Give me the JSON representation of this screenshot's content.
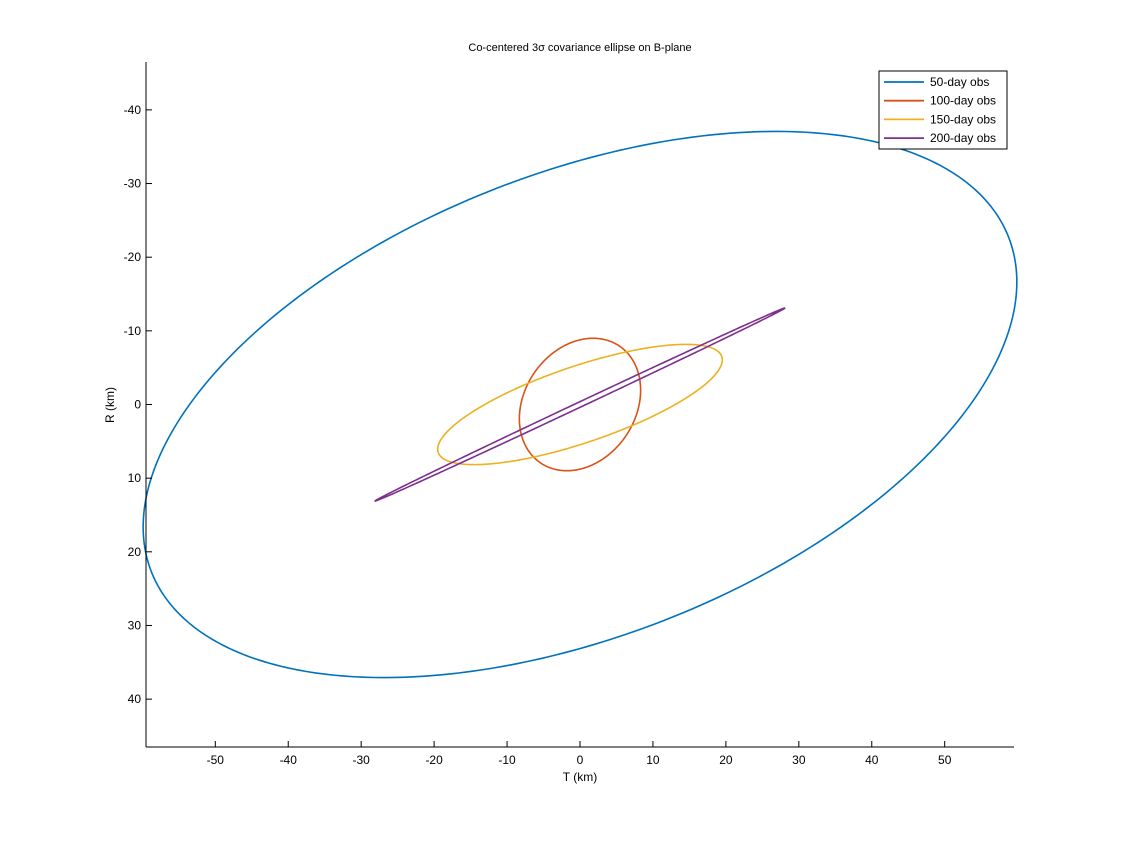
{
  "chart_data": {
    "type": "line",
    "title": "Co-centered 3σ covariance ellipse on B-plane",
    "xlabel": "T (km)",
    "ylabel": "R (km)",
    "xlim": [
      -59.5,
      59.5
    ],
    "ylim": [
      -46.5,
      46.5
    ],
    "y_reversed": true,
    "x_ticks": [
      -50,
      -40,
      -30,
      -20,
      -10,
      0,
      10,
      20,
      30,
      40,
      50
    ],
    "x_tick_labels": [
      "-50",
      "-40",
      "-30",
      "-20",
      "-10",
      "0",
      "10",
      "20",
      "30",
      "40",
      "50"
    ],
    "y_ticks": [
      -40,
      -30,
      -20,
      -10,
      0,
      10,
      20,
      30,
      40
    ],
    "y_tick_labels": [
      "-40",
      "-30",
      "-20",
      "-10",
      "0",
      "10",
      "20",
      "30",
      "40"
    ],
    "grid": false,
    "legend_position": "top-right",
    "series": [
      {
        "name": "50-day obs",
        "color": "#0072BD",
        "center": [
          0,
          0
        ],
        "semi_major": 63.0,
        "semi_minor": 31.5,
        "tilt_deg": -21.0
      },
      {
        "name": "100-day obs",
        "color": "#D95319",
        "center": [
          0,
          0
        ],
        "semi_major": 9.6,
        "semi_minor": 7.6,
        "tilt_deg": -55.0
      },
      {
        "name": "150-day obs",
        "color": "#EDB120",
        "center": [
          0,
          0
        ],
        "semi_major": 20.5,
        "semi_minor": 5.2,
        "tilt_deg": -18.5
      },
      {
        "name": "200-day obs",
        "color": "#7E2F8E",
        "center": [
          0,
          0
        ],
        "semi_major": 31.0,
        "semi_minor": 0.35,
        "tilt_deg": -25.0
      }
    ]
  }
}
